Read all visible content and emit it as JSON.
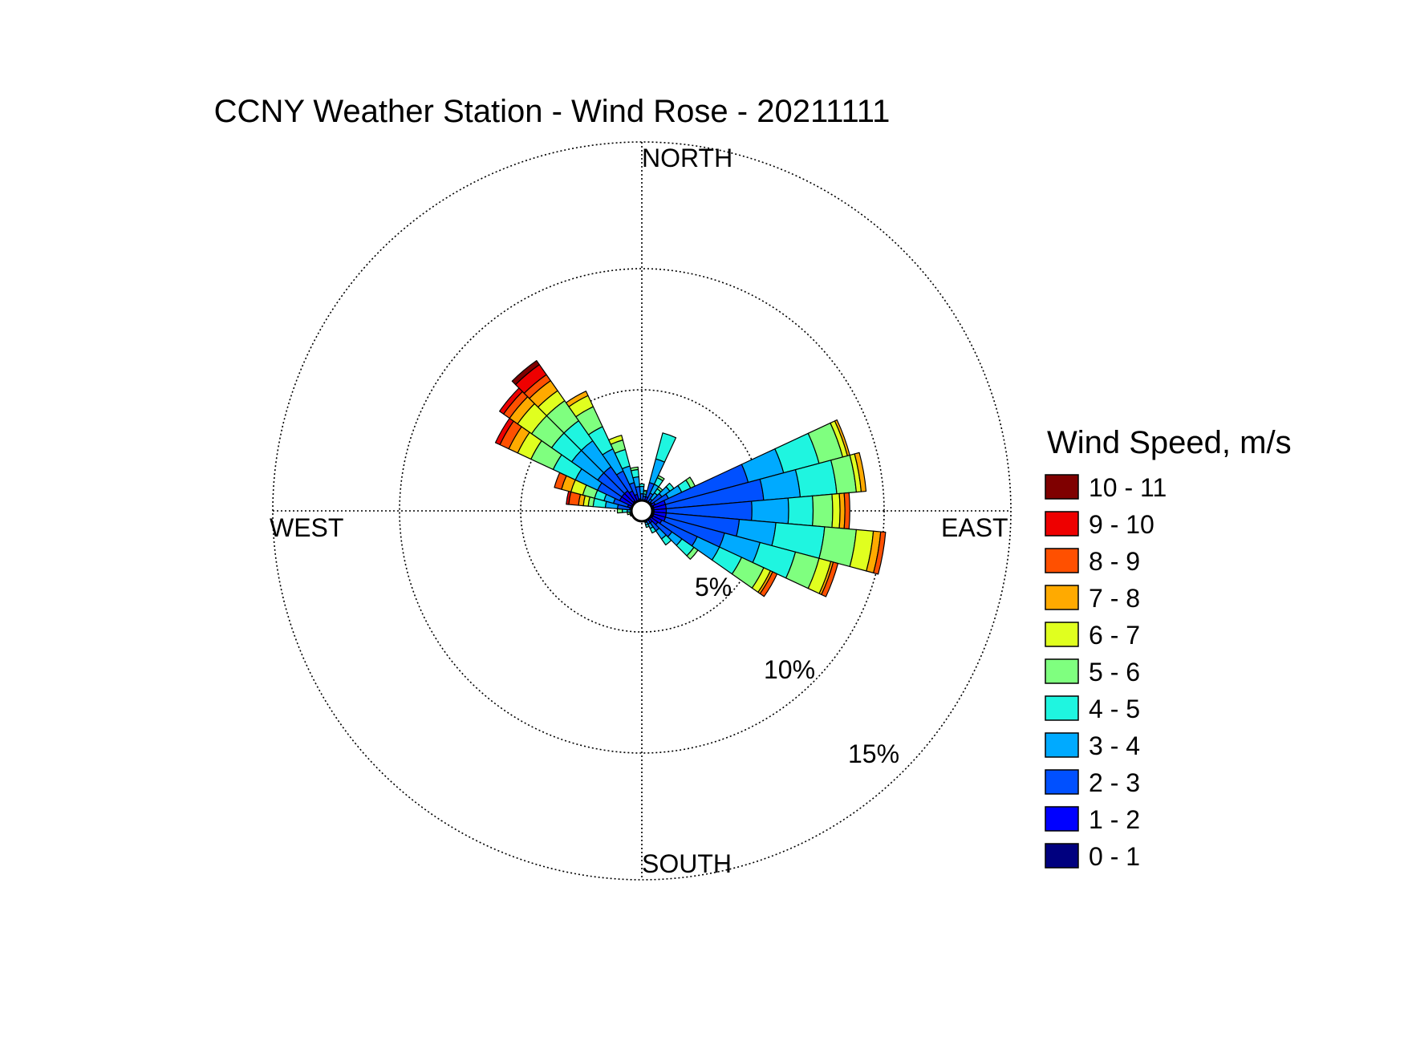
{
  "chart_data": {
    "type": "windrose",
    "title": "CCNY Weather Station - Wind Rose - 20211111",
    "directions": {
      "north": "NORTH",
      "south": "SOUTH",
      "east": "EAST",
      "west": "WEST"
    },
    "ring_labels": [
      "5%",
      "10%",
      "15%"
    ],
    "rings_percent": [
      5,
      10,
      15
    ],
    "legend": {
      "title": "Wind Speed, m/s",
      "bins": [
        {
          "label": "0 - 1",
          "color": "#00007f"
        },
        {
          "label": "1 - 2",
          "color": "#0000ff"
        },
        {
          "label": "2 - 3",
          "color": "#0050ff"
        },
        {
          "label": "3 - 4",
          "color": "#00aaff"
        },
        {
          "label": "4 - 5",
          "color": "#1ff5e0"
        },
        {
          "label": "5 - 6",
          "color": "#7fff7f"
        },
        {
          "label": "6 - 7",
          "color": "#e0ff1f"
        },
        {
          "label": "7 - 8",
          "color": "#ffaa00"
        },
        {
          "label": "8 - 9",
          "color": "#ff5000"
        },
        {
          "label": "9 - 10",
          "color": "#ee0000"
        },
        {
          "label": "10 - 11",
          "color": "#7f0000"
        }
      ]
    },
    "sector_width_deg": 10,
    "sectors": [
      {
        "direction_deg": 10,
        "cumulative_percent": [
          0.2,
          0.4,
          0.6,
          0.7,
          0.8,
          0.85
        ]
      },
      {
        "direction_deg": 20,
        "cumulative_percent": [
          0.3,
          0.6,
          1.2,
          2.2,
          3.3
        ]
      },
      {
        "direction_deg": 30,
        "cumulative_percent": [
          0.2,
          0.4,
          0.8,
          1.2,
          1.5,
          1.6
        ]
      },
      {
        "direction_deg": 40,
        "cumulative_percent": [
          0.2,
          0.4,
          0.6,
          0.9,
          1.1,
          1.2
        ]
      },
      {
        "direction_deg": 50,
        "cumulative_percent": [
          0.3,
          0.5,
          1.0,
          1.4,
          1.6
        ]
      },
      {
        "direction_deg": 60,
        "cumulative_percent": [
          0.3,
          0.6,
          1.2,
          1.8,
          2.2,
          2.4
        ]
      },
      {
        "direction_deg": 70,
        "cumulative_percent": [
          0.5,
          1.0,
          4.5,
          6.0,
          7.5,
          8.5,
          8.7,
          8.8
        ]
      },
      {
        "direction_deg": 80,
        "cumulative_percent": [
          0.5,
          1.0,
          5.0,
          6.5,
          8.0,
          8.8,
          9.0,
          9.2
        ]
      },
      {
        "direction_deg": 90,
        "cumulative_percent": [
          0.5,
          1.0,
          4.5,
          6.0,
          7.0,
          7.8,
          8.1,
          8.3,
          8.5
        ]
      },
      {
        "direction_deg": 100,
        "cumulative_percent": [
          0.5,
          1.0,
          4.0,
          5.5,
          7.5,
          8.8,
          9.5,
          9.8,
          10.0
        ]
      },
      {
        "direction_deg": 110,
        "cumulative_percent": [
          0.5,
          1.0,
          3.5,
          5.0,
          6.5,
          7.5,
          8.0,
          8.1,
          8.3
        ]
      },
      {
        "direction_deg": 120,
        "cumulative_percent": [
          0.5,
          0.9,
          2.5,
          3.5,
          4.5,
          5.5,
          5.8,
          5.9,
          6.1
        ]
      },
      {
        "direction_deg": 130,
        "cumulative_percent": [
          0.4,
          0.8,
          1.5,
          2.0,
          2.6,
          2.8
        ]
      },
      {
        "direction_deg": 140,
        "cumulative_percent": [
          0.3,
          0.6,
          1.0,
          1.4,
          1.7
        ]
      },
      {
        "direction_deg": 150,
        "cumulative_percent": [
          0.2,
          0.4,
          0.6,
          0.8,
          1.0
        ]
      },
      {
        "direction_deg": 160,
        "cumulative_percent": [
          0.2,
          0.3,
          0.5,
          0.6,
          0.7
        ]
      },
      {
        "direction_deg": 170,
        "cumulative_percent": [
          0.1,
          0.2,
          0.3,
          0.4
        ]
      },
      {
        "direction_deg": 240,
        "cumulative_percent": [
          0.1,
          0.2,
          0.3,
          0.4
        ]
      },
      {
        "direction_deg": 250,
        "cumulative_percent": [
          0.1,
          0.2,
          0.3,
          0.4,
          0.5
        ]
      },
      {
        "direction_deg": 260,
        "cumulative_percent": [
          0.1,
          0.2,
          0.3,
          0.4,
          0.5,
          0.6
        ]
      },
      {
        "direction_deg": 270,
        "cumulative_percent": [
          0.1,
          0.2,
          0.4,
          0.6,
          0.8,
          1.0
        ]
      },
      {
        "direction_deg": 280,
        "cumulative_percent": [
          0.2,
          0.5,
          1.0,
          1.5,
          2.0,
          2.2,
          2.4,
          2.6,
          3.0,
          3.1
        ]
      },
      {
        "direction_deg": 290,
        "cumulative_percent": [
          0.3,
          0.6,
          1.2,
          1.6,
          2.0,
          2.5,
          3.0,
          3.4,
          3.7
        ]
      },
      {
        "direction_deg": 300,
        "cumulative_percent": [
          0.4,
          1.0,
          2.0,
          3.0,
          4.0,
          5.0,
          5.6,
          6.0,
          6.4,
          6.6
        ]
      },
      {
        "direction_deg": 310,
        "cumulative_percent": [
          0.4,
          1.0,
          2.2,
          3.5,
          4.5,
          5.5,
          6.2,
          6.6,
          6.9,
          7.1
        ]
      },
      {
        "direction_deg": 320,
        "cumulative_percent": [
          0.5,
          1.0,
          2.2,
          3.5,
          4.5,
          5.5,
          6.0,
          6.5,
          6.8,
          7.3,
          7.5
        ]
      },
      {
        "direction_deg": 330,
        "cumulative_percent": [
          0.4,
          0.9,
          1.8,
          2.8,
          3.8,
          4.7,
          5.2,
          5.4
        ]
      },
      {
        "direction_deg": 340,
        "cumulative_percent": [
          0.3,
          0.7,
          1.2,
          1.9,
          2.6,
          3.0,
          3.2
        ]
      },
      {
        "direction_deg": 350,
        "cumulative_percent": [
          0.2,
          0.5,
          1.0,
          1.4,
          1.7,
          1.8
        ]
      },
      {
        "direction_deg": 0,
        "cumulative_percent": [
          0.2,
          0.4,
          0.7,
          1.0,
          1.1
        ]
      }
    ]
  }
}
